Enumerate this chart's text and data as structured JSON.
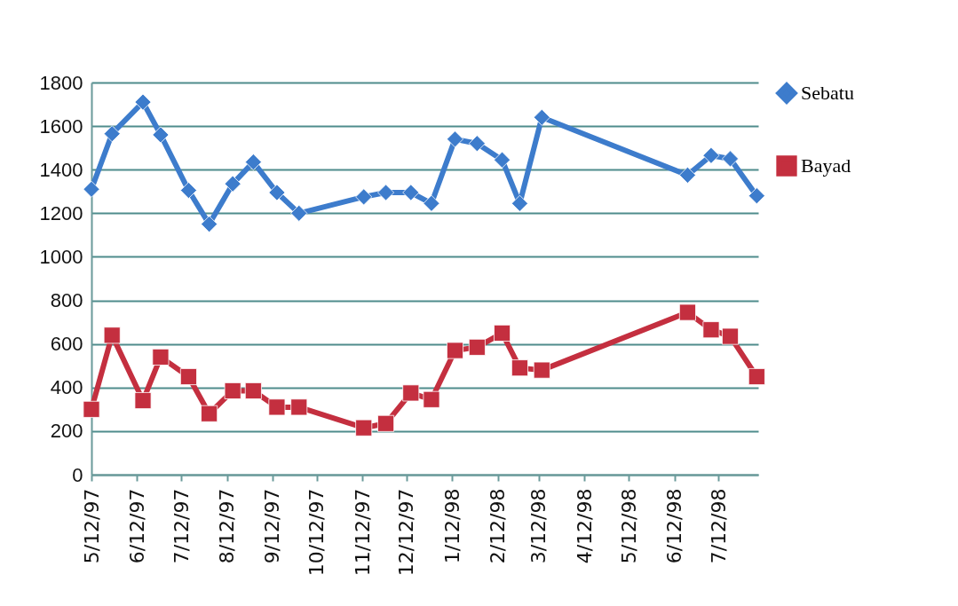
{
  "chart_data": {
    "type": "line",
    "x": [
      "1997-05-12",
      "1997-05-26",
      "1997-06-16",
      "1997-06-28",
      "1997-07-17",
      "1997-07-31",
      "1997-08-16",
      "1997-08-30",
      "1997-09-15",
      "1997-09-30",
      "1997-11-13",
      "1997-11-28",
      "1997-12-15",
      "1997-12-29",
      "1998-01-14",
      "1998-01-29",
      "1998-02-15",
      "1998-02-27",
      "1998-03-14",
      "1998-06-21",
      "1998-07-07",
      "1998-07-20",
      "1998-08-07"
    ],
    "series": [
      {
        "name": "Sebatu",
        "color": "#3d7ccc",
        "marker": "diamond",
        "values": [
          1310,
          1565,
          1710,
          1560,
          1305,
          1150,
          1335,
          1435,
          1295,
          1200,
          1275,
          1295,
          1295,
          1245,
          1540,
          1520,
          1445,
          1245,
          1640,
          1375,
          1465,
          1450,
          1280
        ]
      },
      {
        "name": "Bayad",
        "color": "#c42f3f",
        "marker": "square",
        "values": [
          300,
          640,
          340,
          540,
          450,
          280,
          385,
          385,
          310,
          310,
          215,
          235,
          375,
          345,
          570,
          585,
          650,
          490,
          480,
          745,
          665,
          635,
          450
        ]
      }
    ],
    "xlim": [
      "1997-05-12",
      "1998-08-08"
    ],
    "xticks": [
      {
        "value": "1997-05-12",
        "label": "5/12/97"
      },
      {
        "value": "1997-06-12",
        "label": "6/12/97"
      },
      {
        "value": "1997-07-12",
        "label": "7/12/97"
      },
      {
        "value": "1997-08-12",
        "label": "8/12/97"
      },
      {
        "value": "1997-09-12",
        "label": "9/12/97"
      },
      {
        "value": "1997-10-12",
        "label": "10/12/97"
      },
      {
        "value": "1997-11-12",
        "label": "11/12/97"
      },
      {
        "value": "1997-12-12",
        "label": "12/12/97"
      },
      {
        "value": "1998-01-12",
        "label": "1/12/98"
      },
      {
        "value": "1998-02-12",
        "label": "2/12/98"
      },
      {
        "value": "1998-03-12",
        "label": "3/12/98"
      },
      {
        "value": "1998-04-12",
        "label": "4/12/98"
      },
      {
        "value": "1998-05-12",
        "label": "5/12/98"
      },
      {
        "value": "1998-06-12",
        "label": "6/12/98"
      },
      {
        "value": "1998-07-12",
        "label": "7/12/98"
      }
    ],
    "ylim": [
      0,
      1800
    ],
    "yticks": [
      0,
      200,
      400,
      600,
      800,
      1000,
      1200,
      1400,
      1600,
      1800
    ],
    "grid": "y",
    "legend": "right",
    "line_style": "solid"
  }
}
